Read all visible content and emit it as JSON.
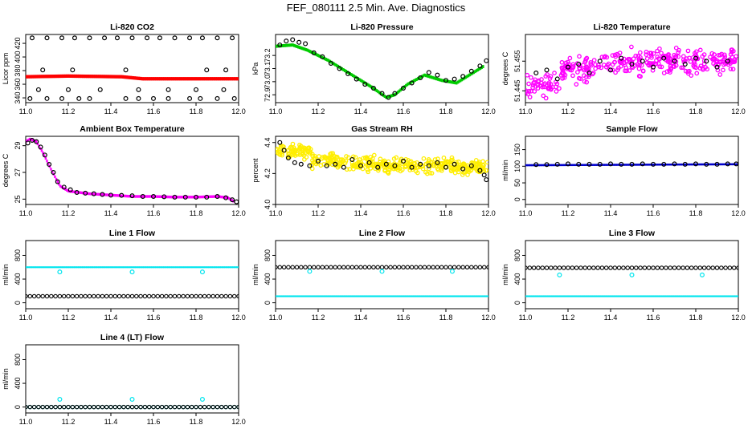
{
  "page_title": "FEF_080111  2.5 Min. Ave. Diagnostics",
  "colors": {
    "black": "#000000",
    "red": "#ff0000",
    "green": "#00cc00",
    "magenta": "#ff00ff",
    "yellow": "#ffee00",
    "blue": "#0000cc",
    "cyan": "#00e5ee"
  },
  "chart_data": [
    {
      "type": "scatter",
      "title": "Li-820 CO2",
      "ylabel": "Licor ppm",
      "xlim": [
        11.0,
        12.0
      ],
      "ylim": [
        333,
        433
      ],
      "xticks": [
        "11.0",
        "11.2",
        "11.4",
        "11.6",
        "11.8",
        "12.0"
      ],
      "yticks": [
        {
          "v": 340,
          "label": "340"
        },
        {
          "v": 360,
          "label": "360"
        },
        {
          "v": 380,
          "label": "380"
        },
        {
          "v": 400,
          "label": "400"
        },
        {
          "v": 420,
          "label": "420"
        }
      ],
      "series": [
        {
          "kind": "band",
          "color": "#ff0000",
          "x": [
            11.0,
            11.2,
            11.45,
            11.55,
            12.0
          ],
          "y": [
            371,
            372,
            371,
            368,
            368
          ],
          "halfwidth": 2.5
        },
        {
          "kind": "points",
          "color": "#000000",
          "x": [
            11.03,
            11.1,
            11.17,
            11.23,
            11.3,
            11.37,
            11.43,
            11.5,
            11.57,
            11.63,
            11.7,
            11.77,
            11.83,
            11.9,
            11.97,
            11.06,
            11.2,
            11.35,
            11.53,
            11.67,
            11.8,
            11.93,
            11.02,
            11.1,
            11.17,
            11.25,
            11.3,
            11.47,
            11.53,
            11.6,
            11.67,
            11.77,
            11.82,
            11.9,
            11.98,
            11.08,
            11.22,
            11.47,
            11.85,
            11.94
          ],
          "y": [
            428,
            428,
            428,
            428,
            428,
            428,
            428,
            428,
            428,
            428,
            428,
            428,
            428,
            428,
            428,
            352,
            352,
            352,
            352,
            352,
            352,
            352,
            339,
            339,
            339,
            339,
            339,
            339,
            339,
            339,
            339,
            339,
            339,
            339,
            339,
            381,
            381,
            381,
            381,
            381
          ]
        }
      ]
    },
    {
      "type": "scatter",
      "title": "Li-820 Pressure",
      "ylabel": "kPa",
      "xlim": [
        11.0,
        12.0
      ],
      "ylim": [
        72.84,
        73.36
      ],
      "xticks": [
        "11.0",
        "11.2",
        "11.4",
        "11.6",
        "11.8",
        "12.0"
      ],
      "yticks": [
        {
          "v": 72.9,
          "label": "72.9"
        },
        {
          "v": 73.0,
          "label": "73.0"
        },
        {
          "v": 73.1,
          "label": "73.1"
        },
        {
          "v": 73.2,
          "label": "73.2"
        }
      ],
      "series": [
        {
          "kind": "band",
          "color": "#00cc00",
          "x": [
            11.0,
            11.08,
            11.15,
            11.25,
            11.35,
            11.45,
            11.52,
            11.56,
            11.62,
            11.7,
            11.78,
            11.85,
            11.92,
            11.98
          ],
          "y": [
            73.27,
            73.28,
            73.24,
            73.16,
            73.06,
            72.96,
            72.88,
            72.9,
            72.98,
            73.05,
            73.01,
            72.99,
            73.06,
            73.12
          ],
          "halfwidth": 0.012
        },
        {
          "kind": "points",
          "color": "#000000",
          "x": [
            11.02,
            11.05,
            11.08,
            11.11,
            11.14,
            11.18,
            11.22,
            11.26,
            11.3,
            11.34,
            11.38,
            11.42,
            11.46,
            11.5,
            11.53,
            11.56,
            11.6,
            11.64,
            11.68,
            11.72,
            11.76,
            11.8,
            11.84,
            11.88,
            11.92,
            11.96,
            11.99
          ],
          "y": [
            73.28,
            73.31,
            73.32,
            73.3,
            73.29,
            73.22,
            73.19,
            73.14,
            73.1,
            73.06,
            73.02,
            72.98,
            72.95,
            72.91,
            72.88,
            72.91,
            72.95,
            72.99,
            73.03,
            73.07,
            73.05,
            73.01,
            73.02,
            73.04,
            73.08,
            73.12,
            73.16
          ]
        }
      ]
    },
    {
      "type": "scatter",
      "title": "Li-820 Temperature",
      "ylabel": "degrees C",
      "xlim": [
        11.0,
        12.0
      ],
      "ylim": [
        51.441,
        51.464
      ],
      "xticks": [
        "11.0",
        "11.2",
        "11.4",
        "11.6",
        "11.8",
        "12.0"
      ],
      "yticks": [
        {
          "v": 51.445,
          "label": "51.445"
        },
        {
          "v": 51.455,
          "label": "51.455"
        }
      ],
      "series": [
        {
          "kind": "cloud",
          "color": "#ff00ff",
          "count": 340,
          "center": [
            51.447,
            51.452,
            51.455,
            51.455,
            51.455,
            51.455
          ],
          "spread": 0.004
        },
        {
          "kind": "points",
          "color": "#000000",
          "x": [
            11.05,
            11.1,
            11.15,
            11.2,
            11.25,
            11.3,
            11.35,
            11.4,
            11.45,
            11.5,
            11.55,
            11.6,
            11.65,
            11.7,
            11.75,
            11.8,
            11.85,
            11.9,
            11.95
          ],
          "y": [
            51.451,
            51.452,
            51.449,
            51.453,
            51.454,
            51.451,
            51.455,
            51.452,
            51.456,
            51.454,
            51.455,
            51.453,
            51.456,
            51.455,
            51.454,
            51.456,
            51.455,
            51.453,
            51.455
          ]
        }
      ]
    },
    {
      "type": "scatter",
      "title": "Ambient Box Temperature",
      "ylabel": "degrees C",
      "xlim": [
        11.0,
        12.0
      ],
      "ylim": [
        24.6,
        29.7
      ],
      "xticks": [
        "11.0",
        "11.2",
        "11.4",
        "11.6",
        "11.8",
        "12.0"
      ],
      "yticks": [
        {
          "v": 25,
          "label": "25"
        },
        {
          "v": 27,
          "label": "27"
        },
        {
          "v": 29,
          "label": "29"
        }
      ],
      "series": [
        {
          "kind": "band",
          "color": "#ff00ff",
          "x": [
            11.0,
            11.02,
            11.05,
            11.08,
            11.12,
            11.16,
            11.2,
            11.3,
            11.4,
            11.5,
            11.6,
            11.7,
            11.8,
            11.9,
            11.95,
            11.98
          ],
          "y": [
            29.3,
            29.5,
            29.3,
            28.5,
            27.2,
            26.0,
            25.6,
            25.4,
            25.3,
            25.2,
            25.2,
            25.15,
            25.15,
            25.2,
            25.1,
            24.8
          ],
          "halfwidth": 0.1
        },
        {
          "kind": "points",
          "color": "#000000",
          "x": [
            11.01,
            11.03,
            11.05,
            11.07,
            11.09,
            11.11,
            11.13,
            11.15,
            11.18,
            11.21,
            11.24,
            11.28,
            11.32,
            11.36,
            11.4,
            11.45,
            11.5,
            11.55,
            11.6,
            11.65,
            11.7,
            11.75,
            11.8,
            11.85,
            11.9,
            11.94,
            11.97,
            11.99
          ],
          "y": [
            29.2,
            29.4,
            29.3,
            28.9,
            28.3,
            27.6,
            27.0,
            26.3,
            25.9,
            25.7,
            25.5,
            25.45,
            25.4,
            25.35,
            25.3,
            25.28,
            25.25,
            25.2,
            25.2,
            25.18,
            25.15,
            25.15,
            25.15,
            25.15,
            25.2,
            25.1,
            24.95,
            24.8
          ]
        }
      ]
    },
    {
      "type": "scatter",
      "title": "Gas Stream RH",
      "ylabel": "percent",
      "xlim": [
        11.0,
        12.0
      ],
      "ylim": [
        4.0,
        4.44
      ],
      "xticks": [
        "11.0",
        "11.2",
        "11.4",
        "11.6",
        "11.8",
        "12.0"
      ],
      "yticks": [
        {
          "v": 4.0,
          "label": "4.0"
        },
        {
          "v": 4.2,
          "label": "4.2"
        },
        {
          "v": 4.4,
          "label": "4.4"
        }
      ],
      "series": [
        {
          "kind": "cloud",
          "color": "#ffee00",
          "count": 420,
          "center": [
            4.34,
            4.28,
            4.26,
            4.25,
            4.25,
            4.24
          ],
          "spread": 0.045
        },
        {
          "kind": "points",
          "color": "#000000",
          "x": [
            11.02,
            11.04,
            11.06,
            11.09,
            11.12,
            11.16,
            11.2,
            11.24,
            11.28,
            11.32,
            11.36,
            11.4,
            11.44,
            11.48,
            11.52,
            11.56,
            11.6,
            11.64,
            11.68,
            11.72,
            11.76,
            11.8,
            11.84,
            11.88,
            11.92,
            11.96,
            11.98,
            11.99
          ],
          "y": [
            4.4,
            4.35,
            4.3,
            4.27,
            4.26,
            4.25,
            4.28,
            4.25,
            4.26,
            4.24,
            4.29,
            4.25,
            4.27,
            4.24,
            4.26,
            4.25,
            4.28,
            4.24,
            4.26,
            4.25,
            4.27,
            4.24,
            4.26,
            4.23,
            4.25,
            4.22,
            4.19,
            4.16
          ]
        }
      ]
    },
    {
      "type": "scatter",
      "title": "Sample Flow",
      "ylabel": "ml/min",
      "xlim": [
        11.0,
        12.0
      ],
      "ylim": [
        -15,
        190
      ],
      "xticks": [
        "11.0",
        "11.2",
        "11.4",
        "11.6",
        "11.8",
        "12.0"
      ],
      "yticks": [
        {
          "v": 0,
          "label": "0"
        },
        {
          "v": 50,
          "label": "50"
        },
        {
          "v": 100,
          "label": "100"
        },
        {
          "v": 150,
          "label": "150"
        }
      ],
      "series": [
        {
          "kind": "band",
          "color": "#0000cc",
          "x": [
            11.0,
            12.0
          ],
          "y": [
            103,
            106
          ],
          "halfwidth": 3
        },
        {
          "kind": "points",
          "color": "#000000",
          "x": [
            11.05,
            11.1,
            11.15,
            11.2,
            11.25,
            11.3,
            11.35,
            11.4,
            11.45,
            11.5,
            11.55,
            11.6,
            11.65,
            11.7,
            11.75,
            11.8,
            11.85,
            11.9,
            11.95,
            11.99
          ],
          "y": [
            105,
            105,
            106,
            107,
            106,
            106,
            106,
            107,
            106,
            106,
            107,
            106,
            106,
            107,
            106,
            107,
            106,
            106,
            107,
            107
          ]
        }
      ]
    },
    {
      "type": "scatter",
      "title": "Line 1 Flow",
      "ylabel": "ml/min",
      "xlim": [
        11.0,
        12.0
      ],
      "ylim": [
        -100,
        1050
      ],
      "xticks": [
        "11.0",
        "11.2",
        "11.4",
        "11.6",
        "11.8",
        "12.0"
      ],
      "yticks": [
        {
          "v": 0,
          "label": "0"
        },
        {
          "v": 400,
          "label": "400"
        },
        {
          "v": 800,
          "label": "800"
        }
      ],
      "series": [
        {
          "kind": "band",
          "color": "#00e5ee",
          "x": [
            11.0,
            12.0
          ],
          "y": [
            600,
            600
          ],
          "halfwidth": 14
        },
        {
          "kind": "dense",
          "color": "#000000",
          "y": 110,
          "step": 0.02
        },
        {
          "kind": "points",
          "color": "#00e5ee",
          "x": [
            11.16,
            11.5,
            11.83
          ],
          "y": [
            520,
            520,
            520
          ]
        }
      ]
    },
    {
      "type": "scatter",
      "title": "Line 2 Flow",
      "ylabel": "ml/min",
      "xlim": [
        11.0,
        12.0
      ],
      "ylim": [
        -100,
        1050
      ],
      "xticks": [
        "11.0",
        "11.2",
        "11.4",
        "11.6",
        "11.8",
        "12.0"
      ],
      "yticks": [
        {
          "v": 0,
          "label": "0"
        },
        {
          "v": 400,
          "label": "400"
        },
        {
          "v": 800,
          "label": "800"
        }
      ],
      "series": [
        {
          "kind": "band",
          "color": "#00e5ee",
          "x": [
            11.0,
            12.0
          ],
          "y": [
            110,
            110
          ],
          "halfwidth": 14
        },
        {
          "kind": "dense",
          "color": "#000000",
          "y": 600,
          "step": 0.02
        },
        {
          "kind": "points",
          "color": "#00e5ee",
          "x": [
            11.16,
            11.5,
            11.83
          ],
          "y": [
            530,
            530,
            530
          ]
        }
      ]
    },
    {
      "type": "scatter",
      "title": "Line 3 Flow",
      "ylabel": "ml/min",
      "xlim": [
        11.0,
        12.0
      ],
      "ylim": [
        -100,
        1050
      ],
      "xticks": [
        "11.0",
        "11.2",
        "11.4",
        "11.6",
        "11.8",
        "12.0"
      ],
      "yticks": [
        {
          "v": 0,
          "label": "0"
        },
        {
          "v": 400,
          "label": "400"
        },
        {
          "v": 800,
          "label": "800"
        }
      ],
      "series": [
        {
          "kind": "band",
          "color": "#00e5ee",
          "x": [
            11.0,
            12.0
          ],
          "y": [
            110,
            110
          ],
          "halfwidth": 14
        },
        {
          "kind": "dense",
          "color": "#000000",
          "y": 590,
          "step": 0.02
        },
        {
          "kind": "points",
          "color": "#00e5ee",
          "x": [
            11.16,
            11.5,
            11.83
          ],
          "y": [
            470,
            470,
            470
          ]
        }
      ]
    },
    {
      "type": "scatter",
      "title": "Line 4 (LT) Flow",
      "ylabel": "ml/min",
      "xlim": [
        11.0,
        12.0
      ],
      "ylim": [
        -100,
        1050
      ],
      "xticks": [
        "11.0",
        "11.2",
        "11.4",
        "11.6",
        "11.8",
        "12.0"
      ],
      "yticks": [
        {
          "v": 0,
          "label": "0"
        },
        {
          "v": 400,
          "label": "400"
        },
        {
          "v": 800,
          "label": "800"
        }
      ],
      "series": [
        {
          "kind": "dense",
          "color": "#00e5ee",
          "y": 0,
          "step": 0.02
        },
        {
          "kind": "dense",
          "color": "#000000",
          "y": 0,
          "step": 0.02
        },
        {
          "kind": "points",
          "color": "#00e5ee",
          "x": [
            11.16,
            11.5,
            11.83
          ],
          "y": [
            130,
            130,
            130
          ]
        }
      ]
    }
  ]
}
